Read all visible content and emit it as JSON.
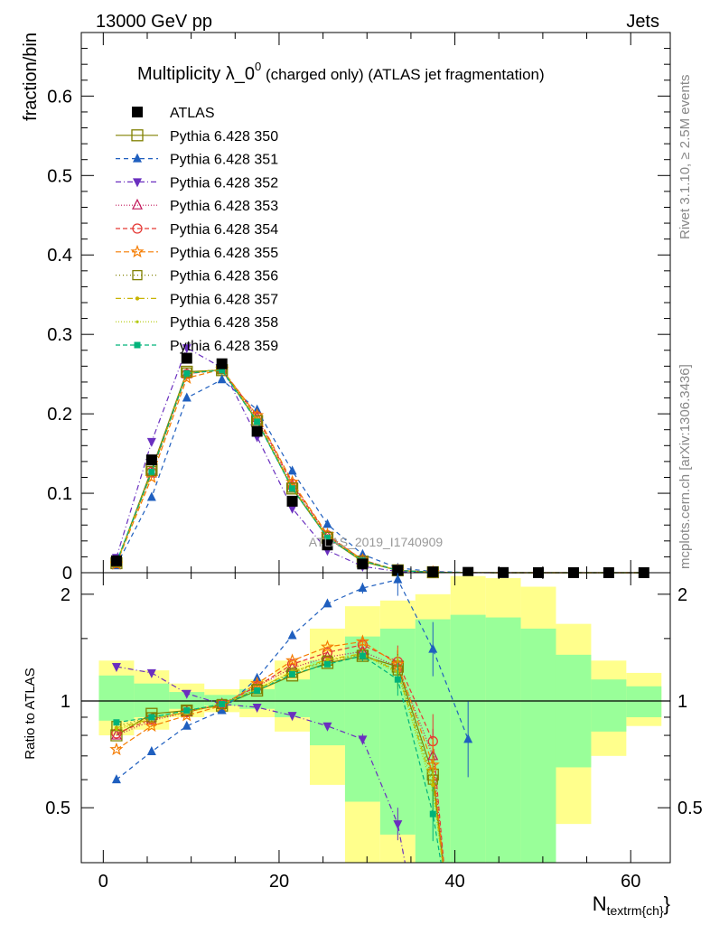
{
  "header": {
    "left": "13000 GeV pp",
    "right": "Jets"
  },
  "side_text": {
    "rivet": "Rivet 3.1.10, ≥ 2.5M events",
    "mcplots": "mcplots.cern.ch [arXiv:1306.3436]"
  },
  "chart_data": [
    {
      "type": "scatter",
      "panel": "main",
      "title": "Multiplicity λ_0",
      "title_sup": "0",
      "title_rest": " (charged only) (ATLAS jet fragmentation)",
      "ylabel": "fraction/bin",
      "watermark": "ATLAS_2019_I1740909",
      "xlim": [
        -2.5,
        64.5
      ],
      "ylim": [
        0,
        0.68
      ],
      "x_ticks": [
        0,
        20,
        40,
        60
      ],
      "y_ticks": [
        0,
        0.1,
        0.2,
        0.3,
        0.4,
        0.5,
        0.6
      ],
      "y_tick_labels": [
        "0",
        "0.1",
        "0.2",
        "0.3",
        "0.4",
        "0.5",
        "0.6"
      ],
      "x": [
        1.5,
        5.5,
        9.5,
        13.5,
        17.5,
        21.5,
        25.5,
        29.5,
        33.5,
        37.5,
        41.5,
        45.5,
        49.5,
        53.5,
        57.5,
        61.5
      ],
      "series": [
        {
          "name": "ATLAS",
          "color": "#000000",
          "marker": "square-filled",
          "dash": "none",
          "values": [
            0.015,
            0.142,
            0.27,
            0.263,
            0.178,
            0.09,
            0.035,
            0.011,
            0.003,
            0.001,
            0.0004,
            0.0002,
            0.0001,
            0.0001,
            5e-05,
            3e-05
          ]
        },
        {
          "name": "Pythia 6.428 350",
          "color": "#808000",
          "marker": "square-open",
          "dash": "solid",
          "values": [
            0.012,
            0.13,
            0.253,
            0.255,
            0.191,
            0.106,
            0.044,
            0.014,
            0.003,
            0.0006,
            0.0001,
            0,
            0,
            0,
            0,
            0
          ]
        },
        {
          "name": "Pythia 6.428 351",
          "color": "#1f5fbf",
          "marker": "triangle-up-filled",
          "dash": "5,4",
          "values": [
            0.009,
            0.095,
            0.22,
            0.243,
            0.205,
            0.128,
            0.061,
            0.023,
            0.006,
            0.0015,
            0.0003,
            0,
            0,
            0,
            0,
            0
          ]
        },
        {
          "name": "Pythia 6.428 352",
          "color": "#6a2fbf",
          "marker": "triangle-down-filled",
          "dash": "6,3,1,3",
          "values": [
            0.019,
            0.165,
            0.283,
            0.258,
            0.171,
            0.081,
            0.028,
            0.008,
            0.0015,
            0.0003,
            0,
            0,
            0,
            0,
            0,
            0
          ]
        },
        {
          "name": "Pythia 6.428 353",
          "color": "#c2185b",
          "marker": "triangle-up-open",
          "dash": "1,2",
          "values": [
            0.012,
            0.125,
            0.25,
            0.256,
            0.195,
            0.11,
            0.046,
            0.015,
            0.003,
            0.0008,
            0.0001,
            0,
            0,
            0,
            0,
            0
          ]
        },
        {
          "name": "Pythia 6.428 354",
          "color": "#e53935",
          "marker": "circle-open",
          "dash": "5,3",
          "values": [
            0.012,
            0.127,
            0.25,
            0.256,
            0.197,
            0.112,
            0.047,
            0.016,
            0.003,
            0.0008,
            0.0001,
            0,
            0,
            0,
            0,
            0
          ]
        },
        {
          "name": "Pythia 6.428 355",
          "color": "#f57c00",
          "marker": "star-open",
          "dash": "6,3",
          "values": [
            0.011,
            0.12,
            0.245,
            0.256,
            0.198,
            0.114,
            0.048,
            0.016,
            0.003,
            0.0006,
            0.0001,
            0,
            0,
            0,
            0,
            0
          ]
        },
        {
          "name": "Pythia 6.428 356",
          "color": "#808000",
          "marker": "square-open-small",
          "dash": "1,3",
          "values": [
            0.013,
            0.128,
            0.252,
            0.256,
            0.192,
            0.107,
            0.045,
            0.015,
            0.003,
            0.0006,
            0.0001,
            0,
            0,
            0,
            0,
            0
          ]
        },
        {
          "name": "Pythia 6.428 357",
          "color": "#c8b400",
          "marker": "dot-small",
          "dash": "6,3,1,3",
          "values": [
            0.012,
            0.126,
            0.251,
            0.256,
            0.193,
            0.108,
            0.045,
            0.015,
            0.003,
            0.0005,
            0.0001,
            0,
            0,
            0,
            0,
            0
          ]
        },
        {
          "name": "Pythia 6.428 358",
          "color": "#b0c800",
          "marker": "dot-tiny",
          "dash": "1,2",
          "values": [
            0.012,
            0.126,
            0.251,
            0.256,
            0.192,
            0.107,
            0.045,
            0.015,
            0.003,
            0.0005,
            0.0001,
            0,
            0,
            0,
            0,
            0
          ]
        },
        {
          "name": "Pythia 6.428 359",
          "color": "#00b37a",
          "marker": "square-filled-small",
          "dash": "5,3",
          "values": [
            0.013,
            0.127,
            0.251,
            0.255,
            0.19,
            0.106,
            0.044,
            0.015,
            0.003,
            0.0004,
            0.0001,
            0,
            0,
            0,
            0,
            0
          ]
        }
      ]
    },
    {
      "type": "scatter",
      "panel": "ratio",
      "ylabel": "Ratio to ATLAS",
      "xlabel": "N",
      "xlabel_sub": "textrm{ch}",
      "xlabel_close": "}",
      "xlim": [
        -2.5,
        64.5
      ],
      "ylim": [
        0.35,
        2.3
      ],
      "x_ticks": [
        0,
        20,
        40,
        60
      ],
      "x_tick_labels": [
        "0",
        "20",
        "40",
        "60"
      ],
      "y_ticks": [
        0.5,
        1,
        2
      ],
      "y_tick_labels": [
        "0.5",
        "1",
        "2"
      ],
      "reference_line": 1,
      "bin_edges": [
        -0.5,
        3.5,
        7.5,
        11.5,
        15.5,
        19.5,
        23.5,
        27.5,
        31.5,
        35.5,
        39.5,
        43.5,
        47.5,
        51.5,
        55.5,
        59.5,
        63.5
      ],
      "band_outer": [
        [
          0.8,
          1.3
        ],
        [
          0.83,
          1.22
        ],
        [
          0.9,
          1.12
        ],
        [
          0.93,
          1.08
        ],
        [
          0.9,
          1.15
        ],
        [
          0.82,
          1.3
        ],
        [
          0.58,
          1.6
        ],
        [
          0.33,
          1.85
        ],
        [
          0.33,
          1.92
        ],
        [
          0.33,
          2.0
        ],
        [
          0.33,
          2.25
        ],
        [
          0.33,
          2.22
        ],
        [
          0.33,
          2.1
        ],
        [
          0.45,
          1.65
        ],
        [
          0.7,
          1.3
        ],
        [
          0.85,
          1.2
        ]
      ],
      "band_inner": [
        [
          0.88,
          1.18
        ],
        [
          0.9,
          1.12
        ],
        [
          0.95,
          1.06
        ],
        [
          0.97,
          1.04
        ],
        [
          0.95,
          1.08
        ],
        [
          0.9,
          1.15
        ],
        [
          0.75,
          1.3
        ],
        [
          0.52,
          1.52
        ],
        [
          0.42,
          1.6
        ],
        [
          0.33,
          1.7
        ],
        [
          0.33,
          1.75
        ],
        [
          0.33,
          1.72
        ],
        [
          0.33,
          1.6
        ],
        [
          0.65,
          1.35
        ],
        [
          0.82,
          1.15
        ],
        [
          0.9,
          1.1
        ]
      ],
      "x": [
        1.5,
        5.5,
        9.5,
        13.5,
        17.5,
        21.5,
        25.5,
        29.5,
        33.5,
        37.5,
        41.5
      ],
      "series": [
        {
          "name": "Pythia 6.428 350",
          "values": [
            0.8,
            0.92,
            0.94,
            0.97,
            1.07,
            1.18,
            1.28,
            1.34,
            1.25,
            0.62,
            null
          ]
        },
        {
          "name": "Pythia 6.428 351",
          "values": [
            0.6,
            0.72,
            0.85,
            0.94,
            1.16,
            1.53,
            1.88,
            2.08,
            2.2,
            1.4,
            0.78
          ]
        },
        {
          "name": "Pythia 6.428 352",
          "values": [
            1.25,
            1.2,
            1.05,
            0.98,
            0.96,
            0.91,
            0.85,
            0.78,
            0.45,
            null,
            null
          ]
        },
        {
          "name": "Pythia 6.428 353",
          "values": [
            0.8,
            0.88,
            0.93,
            0.98,
            1.1,
            1.24,
            1.33,
            1.38,
            1.25,
            0.7,
            null
          ]
        },
        {
          "name": "Pythia 6.428 354",
          "values": [
            0.81,
            0.89,
            0.93,
            0.98,
            1.1,
            1.27,
            1.37,
            1.44,
            1.29,
            0.77,
            null
          ]
        },
        {
          "name": "Pythia 6.428 355",
          "values": [
            0.73,
            0.85,
            0.91,
            0.97,
            1.12,
            1.3,
            1.42,
            1.47,
            1.27,
            0.66,
            null
          ]
        },
        {
          "name": "Pythia 6.428 356",
          "values": [
            0.85,
            0.9,
            0.94,
            0.98,
            1.08,
            1.2,
            1.3,
            1.35,
            1.22,
            0.6,
            null
          ]
        },
        {
          "name": "Pythia 6.428 357",
          "values": [
            0.84,
            0.89,
            0.93,
            0.98,
            1.08,
            1.21,
            1.31,
            1.36,
            1.21,
            0.58,
            null
          ]
        },
        {
          "name": "Pythia 6.428 358",
          "values": [
            0.83,
            0.89,
            0.93,
            0.98,
            1.08,
            1.21,
            1.3,
            1.35,
            1.2,
            0.56,
            null
          ]
        },
        {
          "name": "Pythia 6.428 359",
          "values": [
            0.87,
            0.9,
            0.94,
            0.98,
            1.07,
            1.19,
            1.27,
            1.34,
            1.15,
            0.48,
            null
          ]
        }
      ]
    }
  ]
}
